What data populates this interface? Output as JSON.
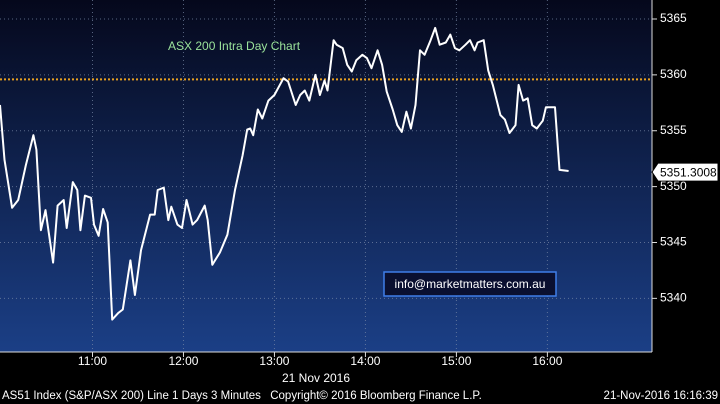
{
  "chart_data": {
    "type": "line",
    "title": "ASX 200 Intra Day Chart",
    "x_label": "21 Nov 2016",
    "annotation": "info@marketmatters.com.au",
    "footer": [
      "AS51 Index (S&P/ASX 200) Line 1 Days 3 Minutes",
      "Copyright© 2016 Bloomberg Finance L.P.",
      "21-Nov-2016 16:16:39"
    ],
    "color": "#ffffff",
    "reference_line": {
      "value": 5359.6,
      "color": "#e8a020"
    },
    "last_price": 5351.3008,
    "grid": true,
    "x": [
      599,
      602,
      607,
      611,
      616,
      621,
      623,
      626,
      629,
      634,
      637,
      641,
      643,
      647,
      650,
      652,
      655,
      659,
      661,
      664,
      667,
      670,
      673,
      677,
      680,
      685,
      688,
      692,
      698,
      701,
      703,
      707,
      710,
      712,
      716,
      719,
      722,
      726,
      729,
      734,
      736,
      739,
      744,
      749,
      754,
      759,
      762,
      764,
      766,
      769,
      772,
      776,
      780,
      786,
      789,
      794,
      797,
      800,
      803,
      807,
      810,
      813,
      815,
      819,
      821,
      825,
      828,
      831,
      834,
      838,
      841,
      844,
      848,
      851,
      854,
      858,
      861,
      864,
      867,
      870,
      873,
      876,
      879,
      883,
      886,
      889,
      893,
      896,
      899,
      902,
      906,
      909,
      912,
      914,
      918,
      921,
      924,
      929,
      932,
      935,
      939,
      941,
      944,
      947,
      950,
      953,
      957,
      959,
      965,
      968,
      974
    ],
    "values": [
      5357.3,
      5352.4,
      5348.1,
      5348.8,
      5351.9,
      5354.6,
      5353.3,
      5346.1,
      5347.9,
      5343.2,
      5348.3,
      5348.8,
      5346.3,
      5350.4,
      5349.7,
      5346.1,
      5349.2,
      5349.0,
      5346.6,
      5345.6,
      5348.0,
      5346.8,
      5338.1,
      5338.7,
      5339.0,
      5343.4,
      5340.3,
      5344.3,
      5347.5,
      5347.5,
      5349.7,
      5349.9,
      5347.0,
      5348.2,
      5346.6,
      5346.3,
      5348.8,
      5346.6,
      5347.0,
      5348.3,
      5347.0,
      5343.0,
      5344.1,
      5345.7,
      5349.7,
      5352.8,
      5355.1,
      5355.2,
      5354.6,
      5356.9,
      5356.1,
      5357.7,
      5358.2,
      5359.7,
      5359.4,
      5357.3,
      5358.2,
      5358.6,
      5357.7,
      5360.0,
      5358.2,
      5359.5,
      5358.6,
      5363.1,
      5362.7,
      5362.4,
      5360.9,
      5360.3,
      5361.3,
      5361.8,
      5361.5,
      5360.6,
      5362.2,
      5360.9,
      5358.5,
      5356.9,
      5355.5,
      5354.9,
      5356.7,
      5355.2,
      5357.3,
      5362.2,
      5361.8,
      5363.1,
      5364.2,
      5362.7,
      5362.9,
      5363.6,
      5362.4,
      5362.2,
      5362.7,
      5363.1,
      5362.2,
      5362.9,
      5363.1,
      5360.4,
      5359.1,
      5356.4,
      5356.0,
      5354.8,
      5355.5,
      5359.1,
      5357.7,
      5357.9,
      5355.5,
      5355.2,
      5355.9,
      5357.1,
      5357.1,
      5351.5,
      5351.4
    ],
    "xlim": [
      599,
      1029
    ],
    "xticks": [
      {
        "value": 660,
        "label": "11:00"
      },
      {
        "value": 720,
        "label": "12:00"
      },
      {
        "value": 780,
        "label": "13:00"
      },
      {
        "value": 840,
        "label": "14:00"
      },
      {
        "value": 900,
        "label": "15:00"
      },
      {
        "value": 960,
        "label": "16:00"
      }
    ],
    "ylim": [
      5335.2,
      5366.7
    ],
    "yticks": [
      5340,
      5345,
      5350,
      5355,
      5360,
      5365
    ]
  }
}
